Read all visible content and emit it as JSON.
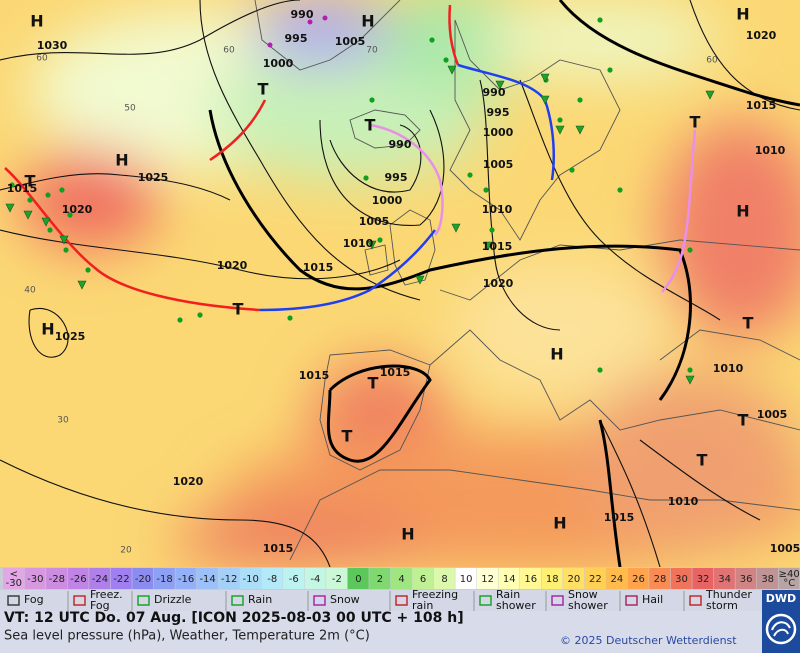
{
  "pressure_labels": [
    "1030",
    "990",
    "995",
    "1005",
    "1000",
    "1025",
    "1020",
    "1015",
    "990",
    "995",
    "1000",
    "1005",
    "1010",
    "1020",
    "1015",
    "990",
    "995",
    "1000",
    "1005",
    "1010",
    "1015",
    "1020",
    "1020",
    "1015",
    "1010",
    "1025",
    "1015",
    "1015",
    "1010",
    "1005",
    "1020",
    "1015",
    "1010",
    "1015",
    "1005"
  ],
  "pressure_centres": [
    "H",
    "H",
    "H",
    "H",
    "H",
    "H",
    "H",
    "H",
    "H",
    "T",
    "T",
    "T",
    "T",
    "T",
    "T",
    "T",
    "T",
    "T",
    "T"
  ],
  "temperature_labels": [
    "60",
    "60",
    "60",
    "50",
    "40",
    "30",
    "20",
    "70"
  ],
  "temperature_scale": [
    {
      "label": [
        "<",
        "-30"
      ],
      "color": "#e2a8e6"
    },
    {
      "label": -30,
      "color": "#d898e0"
    },
    {
      "label": -28,
      "color": "#cc8ce0"
    },
    {
      "label": -26,
      "color": "#c084e4"
    },
    {
      "label": -24,
      "color": "#b080ea"
    },
    {
      "label": -22,
      "color": "#a080f0"
    },
    {
      "label": -20,
      "color": "#8c8cf0"
    },
    {
      "label": -18,
      "color": "#8ea0f4"
    },
    {
      "label": -16,
      "color": "#94b0f8"
    },
    {
      "label": -14,
      "color": "#9cc0f8"
    },
    {
      "label": -12,
      "color": "#a4d0f8"
    },
    {
      "label": -10,
      "color": "#acdef8"
    },
    {
      "label": -8,
      "color": "#b4eaf8"
    },
    {
      "label": -6,
      "color": "#bcf2f0"
    },
    {
      "label": -4,
      "color": "#c4f6e4"
    },
    {
      "label": -2,
      "color": "#ccf8d8"
    },
    {
      "label": 0,
      "color": "#5cc85c"
    },
    {
      "label": 2,
      "color": "#80d870"
    },
    {
      "label": 4,
      "color": "#a0e680"
    },
    {
      "label": 6,
      "color": "#c0f094"
    },
    {
      "label": 8,
      "color": "#dcf8ac"
    },
    {
      "label": 10,
      "color": "#ffffff"
    },
    {
      "label": 12,
      "color": "#ffffd4"
    },
    {
      "label": 14,
      "color": "#ffffb4"
    },
    {
      "label": 16,
      "color": "#fff894"
    },
    {
      "label": 18,
      "color": "#fff074"
    },
    {
      "label": 20,
      "color": "#ffe064"
    },
    {
      "label": 22,
      "color": "#ffd054"
    },
    {
      "label": 24,
      "color": "#ffbc4c"
    },
    {
      "label": 26,
      "color": "#ffa44c"
    },
    {
      "label": 28,
      "color": "#f88c54"
    },
    {
      "label": 30,
      "color": "#f0745c"
    },
    {
      "label": 32,
      "color": "#e86464"
    },
    {
      "label": 34,
      "color": "#e07474"
    },
    {
      "label": 36,
      "color": "#d08484"
    },
    {
      "label": 38,
      "color": "#c09494"
    },
    {
      "label": [
        "≥40",
        "°C"
      ],
      "color": "#b8a4a4"
    }
  ],
  "weather_legend": [
    [
      "Fog"
    ],
    [
      "Freez.",
      "Fog"
    ],
    [
      "Drizzle"
    ],
    [
      "Rain"
    ],
    [
      "Snow"
    ],
    [
      "Freezing",
      "rain"
    ],
    [
      "Rain",
      "shower"
    ],
    [
      "Snow",
      "shower"
    ],
    [
      "Hail"
    ],
    [
      "Thunder",
      "storm"
    ]
  ],
  "footer": {
    "valid_time": "VT: 12 UTC Do.  07 Aug. [ICON 2025-08-03  00 UTC + 108 h]",
    "description": "Sea level pressure (hPa), Weather, Temperature 2m (°C)",
    "copyright": "© 2025 Deutscher Wetterdienst",
    "logo": "DWD"
  }
}
